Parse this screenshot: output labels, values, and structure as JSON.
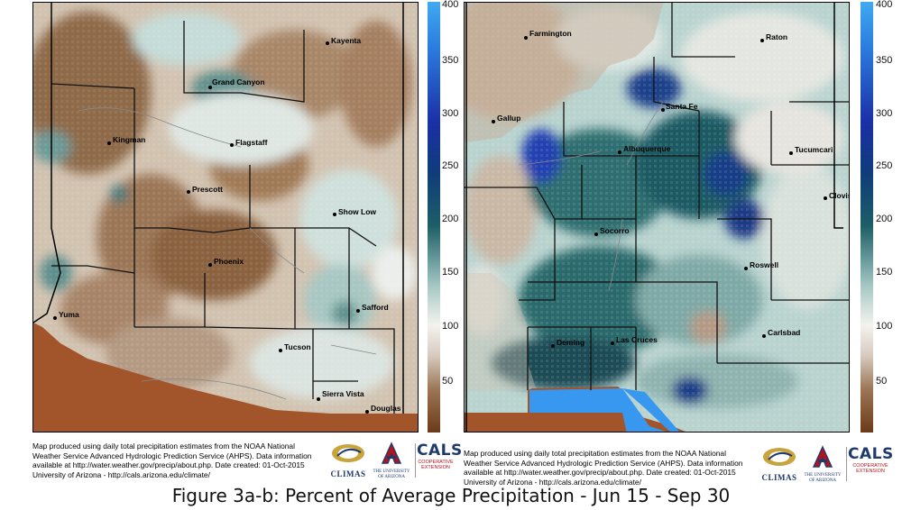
{
  "caption": "Figure 3a-b: Percent of Average Precipitation - Jun 15 - Sep 30",
  "colorbar": {
    "ticks": [
      "400",
      "350",
      "300",
      "250",
      "200",
      "150",
      "100",
      "50"
    ],
    "colors": [
      "#6b3a16",
      "#9c7656",
      "#d8ccc1",
      "#f4f2ef",
      "#a5c8c4",
      "#1d5e66",
      "#0f3d7a",
      "#1b2fa6",
      "#2c7fe0",
      "#40aaf0"
    ]
  },
  "maps": [
    {
      "state": "Arizona",
      "cities": [
        "Kayenta",
        "Grand Canyon",
        "Kingman",
        "Flagstaff",
        "Prescott",
        "Show Low",
        "Phoenix",
        "Yuma",
        "Safford",
        "Tucson",
        "Sierra Vista",
        "Douglas"
      ]
    },
    {
      "state": "New Mexico",
      "cities": [
        "Farmington",
        "Raton",
        "Gallup",
        "Santa Fe",
        "Albuquerque",
        "Tucumcari",
        "Clovis",
        "Socorro",
        "Roswell",
        "Deming",
        "Las Cruces",
        "Carlsbad"
      ]
    }
  ],
  "credit": {
    "lines": [
      "Map produced using daily total precipitation estimates from the NOAA National",
      "Weather Service Advanced Hydrologic Prediction Service (AHPS). Data information",
      "available at http://water.weather.gov/precip/about.php. Date created: 01-Oct-2015",
      "University of Arizona - http://cals.arizona.edu/climate/"
    ]
  },
  "logos": {
    "climas": "CLIMAS",
    "ua_line1": "THE UNIVERSITY",
    "ua_line2": "OF ARIZONA",
    "cals": "CALS",
    "cals_line1": "COOPERATIVE",
    "cals_line2": "EXTENSION"
  }
}
